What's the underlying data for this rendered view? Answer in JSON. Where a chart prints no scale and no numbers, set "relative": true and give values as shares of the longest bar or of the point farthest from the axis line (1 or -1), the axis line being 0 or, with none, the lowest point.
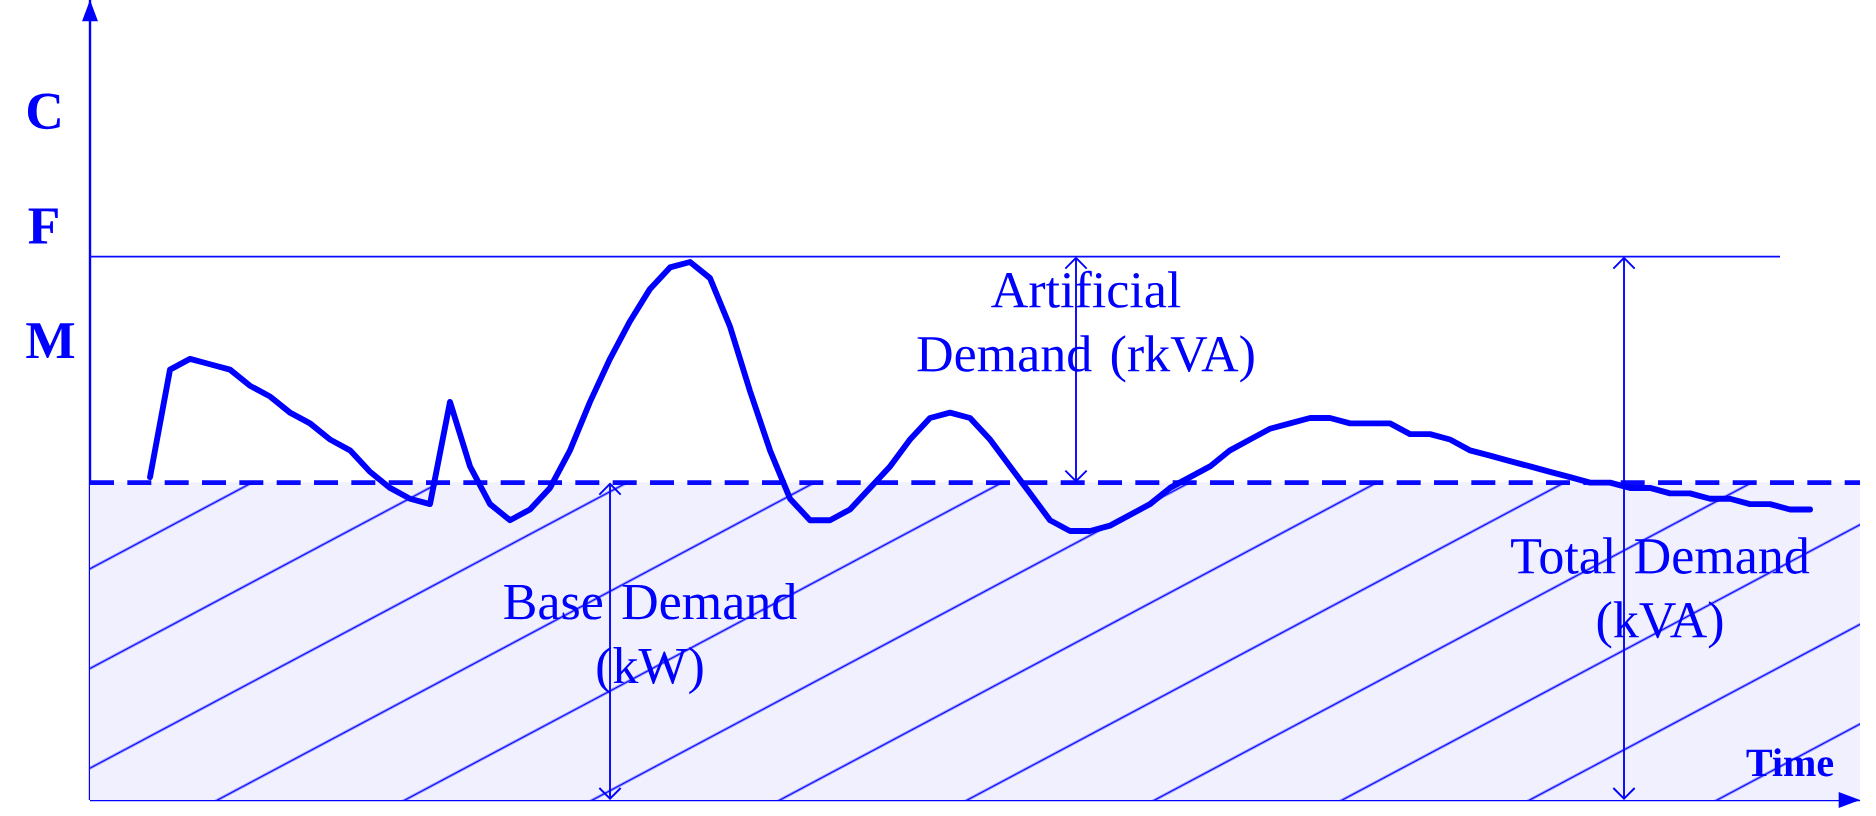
{
  "chart_data": {
    "type": "line",
    "relative": true,
    "xlabel": "Time",
    "ylabel": "C F M",
    "categories": [
      null,
      null,
      null,
      null,
      null,
      null,
      null,
      null,
      null,
      null,
      null,
      null,
      null,
      null,
      null,
      null,
      null,
      null,
      null,
      null,
      null,
      null,
      null,
      null,
      null,
      null,
      null,
      null,
      null,
      null,
      null,
      null,
      null,
      null,
      null,
      null,
      null,
      null,
      null,
      null,
      null,
      null,
      null,
      null,
      null,
      null,
      null,
      null,
      null,
      null,
      null,
      null,
      null,
      null,
      null,
      null,
      null,
      null,
      null,
      null,
      null,
      null,
      null,
      null,
      null,
      null,
      null,
      null,
      null,
      null,
      null,
      null,
      null,
      null,
      null,
      null,
      null,
      null,
      null,
      null,
      null,
      null,
      null,
      null
    ],
    "series": [
      {
        "color": "#0000ff",
        "values": [
          0.6,
          0.8,
          0.82,
          0.81,
          0.8,
          0.77,
          0.75,
          0.72,
          0.7,
          0.67,
          0.65,
          0.61,
          0.58,
          0.56,
          0.55,
          0.74,
          0.62,
          0.55,
          0.52,
          0.54,
          0.58,
          0.65,
          0.74,
          0.82,
          0.89,
          0.95,
          0.99,
          1.0,
          0.97,
          0.88,
          0.76,
          0.65,
          0.56,
          0.52,
          0.52,
          0.54,
          0.58,
          0.62,
          0.67,
          0.71,
          0.72,
          0.71,
          0.67,
          0.62,
          0.57,
          0.52,
          0.5,
          0.5,
          0.51,
          0.53,
          0.55,
          0.58,
          0.6,
          0.62,
          0.65,
          0.67,
          0.69,
          0.7,
          0.71,
          0.71,
          0.7,
          0.7,
          0.7,
          0.68,
          0.68,
          0.67,
          0.65,
          0.64,
          0.63,
          0.62,
          0.61,
          0.6,
          0.59,
          0.59,
          0.58,
          0.58,
          0.57,
          0.57,
          0.56,
          0.56,
          0.55,
          0.55,
          0.54,
          0.54
        ]
      }
    ],
    "ref_lines": [
      {
        "axis": "y",
        "value": 1.01,
        "color": "#0a0aff",
        "line_style": "solid"
      },
      {
        "axis": "y",
        "value": 0.59,
        "color": "#0a0aff",
        "line_style": "dashed"
      }
    ],
    "bands": [
      {
        "axis": "y",
        "from": 0,
        "to": 0.59,
        "color": "#f0f0ff"
      }
    ],
    "annotations": [
      "Artificial Demand (rkVA)",
      "Base Demand (kW)",
      "Total Demand (kVA)"
    ],
    "marker": "none",
    "line_style": "solid"
  }
}
